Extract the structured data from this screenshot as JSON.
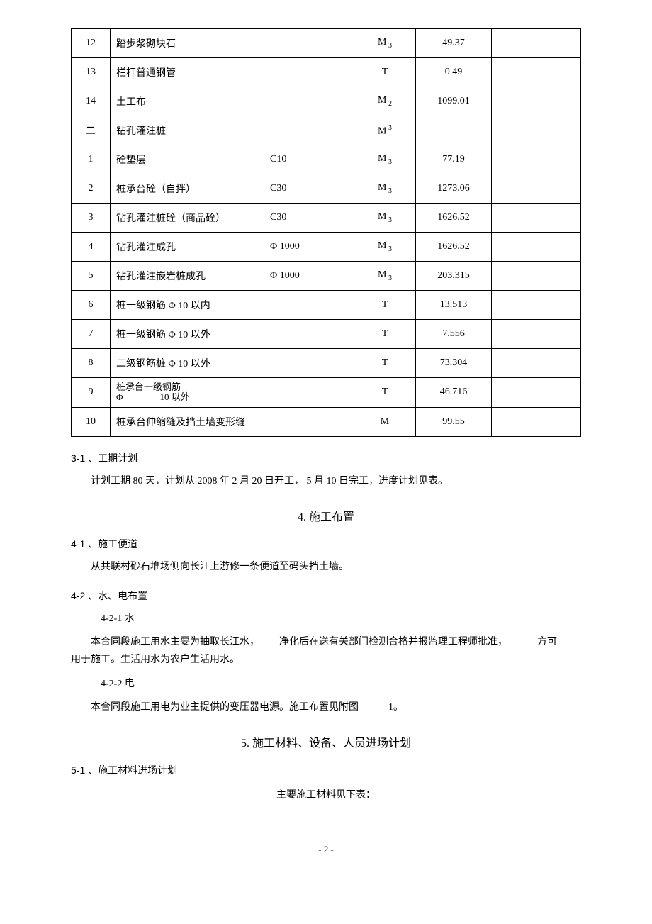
{
  "table": {
    "rows": [
      {
        "idx": "12",
        "name": "踏步浆砌块石",
        "spec": "",
        "unit_base": "M",
        "unit_sub": "3",
        "unit_sup": "",
        "value": "49.37"
      },
      {
        "idx": "13",
        "name": "栏杆普通钢管",
        "spec": "",
        "unit_base": "T",
        "unit_sub": "",
        "unit_sup": "",
        "value": "0.49"
      },
      {
        "idx": "14",
        "name": "土工布",
        "spec": "",
        "unit_base": "M",
        "unit_sub": "2",
        "unit_sup": "",
        "value": "1099.01"
      },
      {
        "idx": "二",
        "name": "钻孔灌注桩",
        "spec": "",
        "unit_base": "M",
        "unit_sub": "",
        "unit_sup": "3",
        "value": ""
      },
      {
        "idx": "1",
        "name": "砼垫层",
        "spec": "C10",
        "unit_base": "M",
        "unit_sub": "3",
        "unit_sup": "",
        "value": "77.19"
      },
      {
        "idx": "2",
        "name": "桩承台砼（自拌）",
        "spec": "C30",
        "unit_base": "M",
        "unit_sub": "3",
        "unit_sup": "",
        "value": "1273.06"
      },
      {
        "idx": "3",
        "name": "钻孔灌注桩砼（商品砼）",
        "spec": "C30",
        "unit_base": "M",
        "unit_sub": "3",
        "unit_sup": "",
        "value": "1626.52"
      },
      {
        "idx": "4",
        "name": "钻孔灌注成孔",
        "spec": "Φ 1000",
        "unit_base": "M",
        "unit_sub": "3",
        "unit_sup": "",
        "value": "1626.52"
      },
      {
        "idx": "5",
        "name": "钻孔灌注嵌岩桩成孔",
        "spec": "Φ 1000",
        "unit_base": "M",
        "unit_sub": "3",
        "unit_sup": "",
        "value": "203.315"
      },
      {
        "idx": "6",
        "name": "桩一级钢筋 Φ  10 以内",
        "spec": "",
        "unit_base": "T",
        "unit_sub": "",
        "unit_sup": "",
        "value": "13.513"
      },
      {
        "idx": "7",
        "name": "桩一级钢筋 Φ  10 以外",
        "spec": "",
        "unit_base": "T",
        "unit_sub": "",
        "unit_sup": "",
        "value": "7.556"
      },
      {
        "idx": "8",
        "name": "二级钢筋桩 Φ  10 以外",
        "spec": "",
        "unit_base": "T",
        "unit_sub": "",
        "unit_sup": "",
        "value": "73.304"
      },
      {
        "idx": "9",
        "name_html": "two-line",
        "name_l1": "桩承台一级钢筋",
        "name_l2": "Φ    10  以外",
        "spec": "",
        "unit_base": "T",
        "unit_sub": "",
        "unit_sup": "",
        "value": "46.716"
      },
      {
        "idx": "10",
        "name": "桩承台伸缩缝及挡土墙变形缝",
        "spec": "",
        "unit_base": "M",
        "unit_sub": "",
        "unit_sup": "",
        "value": "99.55"
      }
    ]
  },
  "sec31": {
    "title": "3-1 、工期计划",
    "body": "计划工期  80 天，计划从    2008 年 2 月 20  日开工， 5 月 10 日完工，进度计划见表。"
  },
  "h4": "4.   施工布置",
  "sec41": {
    "title": "4-1 、施工便道",
    "body": "从共联村砂石堆场侧向长江上游修一条便道至码头挡土墙。"
  },
  "sec42": {
    "title": "4-2 、水、电布置",
    "sub1_title": "4-2-1    水",
    "sub1_p1": "本合同段施工用水主要为抽取长江水，  净化后在送有关部门检测合格并报监理工程师批准，   方可",
    "sub1_p2": "用于施工。生活用水为农户生活用水。",
    "sub2_title": "4-2-2    电",
    "sub2_body": "本合同段施工用电为业主提供的变压器电源。施工布置见附图   1。"
  },
  "h5": "5.   施工材料、设备、人员进场计划",
  "sec51": {
    "title": "5-1 、施工材料进场计划",
    "body": "主要施工材料见下表："
  },
  "pageNum": "- 2 -"
}
